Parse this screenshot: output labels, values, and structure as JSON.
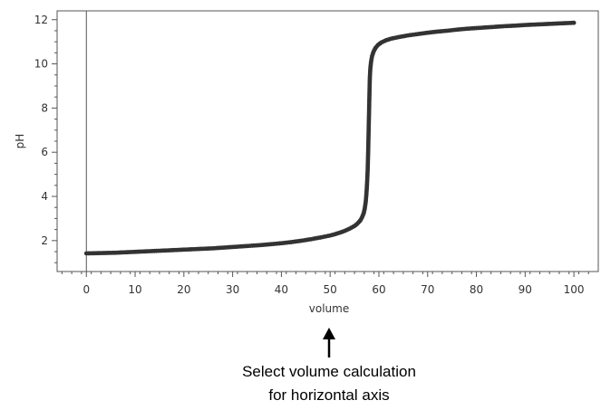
{
  "chart_data": {
    "type": "scatter",
    "xlabel": "volume",
    "ylabel": "pH",
    "xlim": [
      -6,
      105
    ],
    "ylim": [
      0.6,
      12.4
    ],
    "x_ticks": [
      0,
      10,
      20,
      30,
      40,
      50,
      60,
      70,
      80,
      90,
      100
    ],
    "y_ticks": [
      2,
      4,
      6,
      8,
      10,
      12
    ],
    "marker_color": "#333333",
    "axis_color": "#555555",
    "grid": false,
    "series": [
      {
        "points": [
          [
            0,
            1.42
          ],
          [
            2,
            1.43
          ],
          [
            4,
            1.44
          ],
          [
            6,
            1.45
          ],
          [
            8,
            1.47
          ],
          [
            10,
            1.49
          ],
          [
            12,
            1.51
          ],
          [
            14,
            1.53
          ],
          [
            16,
            1.55
          ],
          [
            18,
            1.57
          ],
          [
            20,
            1.59
          ],
          [
            22,
            1.61
          ],
          [
            24,
            1.63
          ],
          [
            26,
            1.65
          ],
          [
            28,
            1.68
          ],
          [
            30,
            1.71
          ],
          [
            32,
            1.74
          ],
          [
            34,
            1.77
          ],
          [
            36,
            1.8
          ],
          [
            38,
            1.84
          ],
          [
            40,
            1.88
          ],
          [
            42,
            1.93
          ],
          [
            44,
            1.99
          ],
          [
            46,
            2.06
          ],
          [
            48,
            2.14
          ],
          [
            50,
            2.23
          ],
          [
            51,
            2.29
          ],
          [
            52,
            2.36
          ],
          [
            53,
            2.44
          ],
          [
            54,
            2.54
          ],
          [
            55,
            2.66
          ],
          [
            55.5,
            2.75
          ],
          [
            56,
            2.86
          ],
          [
            56.3,
            2.95
          ],
          [
            56.6,
            3.08
          ],
          [
            56.9,
            3.25
          ],
          [
            57.1,
            3.45
          ],
          [
            57.3,
            3.75
          ],
          [
            57.4,
            4.0
          ],
          [
            57.5,
            4.3
          ],
          [
            57.6,
            4.7
          ],
          [
            57.7,
            5.2
          ],
          [
            57.75,
            5.6
          ],
          [
            57.8,
            6.0
          ],
          [
            57.85,
            6.5
          ],
          [
            57.9,
            7.0
          ],
          [
            57.95,
            7.5
          ],
          [
            58.0,
            8.0
          ],
          [
            58.05,
            8.5
          ],
          [
            58.1,
            9.0
          ],
          [
            58.15,
            9.4
          ],
          [
            58.25,
            9.8
          ],
          [
            58.4,
            10.1
          ],
          [
            58.6,
            10.35
          ],
          [
            58.9,
            10.55
          ],
          [
            59.3,
            10.72
          ],
          [
            59.8,
            10.85
          ],
          [
            60.5,
            10.97
          ],
          [
            61.5,
            11.07
          ],
          [
            62.5,
            11.14
          ],
          [
            64,
            11.21
          ],
          [
            66,
            11.29
          ],
          [
            68,
            11.35
          ],
          [
            70,
            11.41
          ],
          [
            72,
            11.46
          ],
          [
            74,
            11.5
          ],
          [
            76,
            11.55
          ],
          [
            78,
            11.59
          ],
          [
            80,
            11.62
          ],
          [
            82,
            11.65
          ],
          [
            84,
            11.68
          ],
          [
            86,
            11.71
          ],
          [
            88,
            11.73
          ],
          [
            90,
            11.76
          ],
          [
            92,
            11.78
          ],
          [
            94,
            11.8
          ],
          [
            96,
            11.82
          ],
          [
            98,
            11.84
          ],
          [
            100,
            11.86
          ]
        ]
      }
    ]
  },
  "annotation": {
    "line1": "Select volume calculation",
    "line2": "for horizontal axis",
    "arrow_icon": "up-arrow-icon"
  }
}
